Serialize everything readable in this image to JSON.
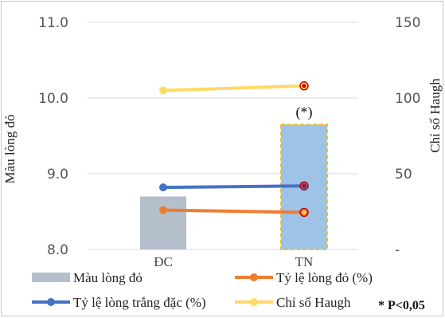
{
  "chart_data": {
    "type": "bar",
    "categories": [
      "ĐC",
      "TN"
    ],
    "left_axis": {
      "label": "Màu lòng đỏ",
      "range": [
        8.0,
        11.0
      ],
      "ticks": [
        "8.0",
        "9.0",
        "10.0",
        "11.0"
      ]
    },
    "right_axis": {
      "label": "Chỉ số Haugh",
      "range": [
        0,
        150
      ],
      "ticks": [
        "-",
        "50",
        "100",
        "150"
      ]
    },
    "series": [
      {
        "name": "Màu lòng đỏ",
        "kind": "bar",
        "axis": "left",
        "values": [
          8.7,
          9.65
        ],
        "color": "#b5bfcc",
        "highlight_color": "#9ec3e6"
      },
      {
        "name": "Tỷ lệ lòng đỏ (%)",
        "kind": "line",
        "axis": "left",
        "values": [
          8.52,
          8.49
        ],
        "color": "#ed7d31"
      },
      {
        "name": "Tỷ lệ lòng trắng đặc (%)",
        "kind": "line",
        "axis": "left",
        "values": [
          8.82,
          8.84
        ],
        "color": "#4472c4"
      },
      {
        "name": "Chỉ số Haugh",
        "kind": "line",
        "axis": "left",
        "values": [
          10.1,
          10.16
        ],
        "color": "#ffd966"
      }
    ],
    "annotation": "(*)",
    "footnote": "* P<0,05",
    "grid": true,
    "legend_position": "bottom"
  }
}
